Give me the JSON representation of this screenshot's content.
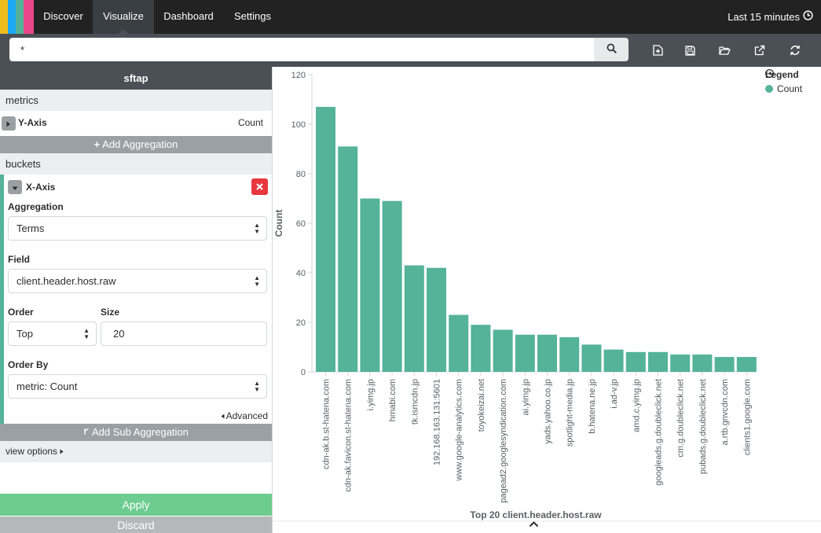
{
  "nav": {
    "logo_colors": [
      "#f0bd1d",
      "#1ba9f5",
      "#54b399",
      "#e8478b"
    ],
    "tabs": [
      "Discover",
      "Visualize",
      "Dashboard",
      "Settings"
    ],
    "active_tab": "Visualize",
    "time_range": "Last 15 minutes"
  },
  "search": {
    "query": "*",
    "tools": [
      "new-visualization-icon",
      "save-icon",
      "open-icon",
      "share-icon",
      "refresh-icon"
    ]
  },
  "sidebar": {
    "index_pattern": "sftap",
    "metrics_label": "metrics",
    "y_axis": {
      "title": "Y-Axis",
      "value": "Count"
    },
    "add_aggregation": "Add Aggregation",
    "buckets_label": "buckets",
    "x_axis": {
      "title": "X-Axis",
      "aggregation_label": "Aggregation",
      "aggregation_value": "Terms",
      "field_label": "Field",
      "field_value": "client.header.host.raw",
      "order_label": "Order",
      "order_value": "Top",
      "size_label": "Size",
      "size_value": "20",
      "order_by_label": "Order By",
      "order_by_value": "metric: Count",
      "advanced_label": "Advanced"
    },
    "add_sub_aggregation": "Add Sub Aggregation",
    "view_options": "view options",
    "apply": "Apply",
    "discard": "Discard"
  },
  "legend": {
    "title": "Legend",
    "item": "Count",
    "color": "#54b399"
  },
  "chart_data": {
    "type": "bar",
    "title": "Top 20 client.header.host.raw",
    "xlabel": "Top 20 client.header.host.raw",
    "ylabel": "Count",
    "ylim": [
      0,
      120
    ],
    "yticks": [
      0,
      20,
      40,
      60,
      80,
      100,
      120
    ],
    "color": "#54b399",
    "categories": [
      "cdn-ak.b.st-hatena.com",
      "cdn-ak.favicon.st-hatena.com",
      "i.yimg.jp",
      "hrnabi.com",
      "tk.ismcdn.jp",
      "192.168.163.131:5601",
      "www.google-analytics.com",
      "toyokeizai.net",
      "pagead2.googlesyndication.com",
      "ai.yimg.jp",
      "yads.yahoo.co.jp",
      "spotlight-media.jp",
      "b.hatena.ne.jp",
      "i.ad-v.jp",
      "amd.c.yimg.jp",
      "googleads.g.doubleclick.net",
      "cm.g.doubleclick.net",
      "pubads.g.doubleclick.net",
      "a.rtb.gnvcdn.com",
      "clients1.google.com"
    ],
    "values": [
      107,
      91,
      70,
      69,
      43,
      42,
      23,
      19,
      17,
      15,
      15,
      14,
      11,
      9,
      8,
      8,
      7,
      7,
      6,
      6
    ],
    "legend": "top-right",
    "grid": false
  }
}
